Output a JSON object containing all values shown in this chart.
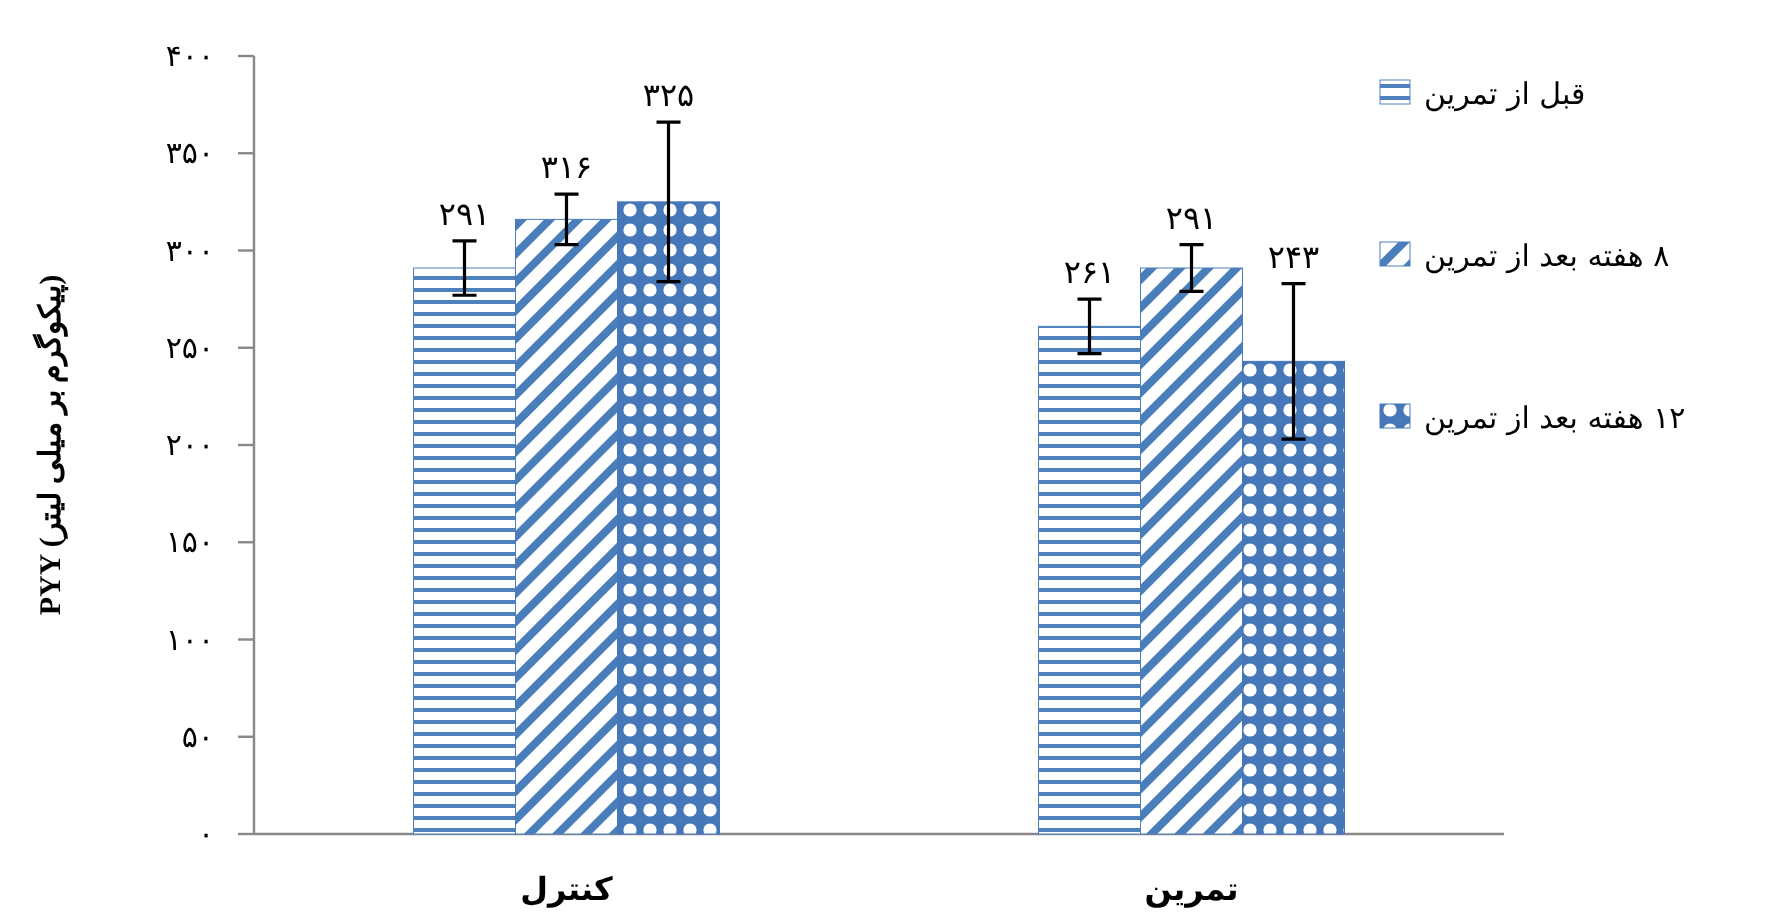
{
  "chart_data": {
    "type": "bar",
    "ylabel": "PYY (پیکوگرم بر میلی لیتر)",
    "categories": [
      "کنترل",
      "تمرین"
    ],
    "series": [
      {
        "name": "قبل از تمرین",
        "color": "#4f81bd",
        "values": [
          291,
          261
        ],
        "errors": [
          14,
          14
        ],
        "value_labels": [
          "۲۹۱",
          "۲۶۱"
        ]
      },
      {
        "name": "۸ هفته بعد از تمرین",
        "color": "#4a7ebb",
        "values": [
          316,
          291
        ],
        "errors": [
          13,
          12
        ],
        "value_labels": [
          "۳۱۶",
          "۲۹۱"
        ]
      },
      {
        "name": "۱۲ هفته بعد از تمرین",
        "color": "#4677b8",
        "values": [
          325,
          243
        ],
        "errors": [
          41,
          40
        ],
        "value_labels": [
          "۳۲۵",
          "۲۴۳"
        ]
      }
    ],
    "ylim": [
      0,
      400
    ],
    "yticks": [
      {
        "value": 0,
        "label": "۰"
      },
      {
        "value": 50,
        "label": "۵۰"
      },
      {
        "value": 100,
        "label": "۱۰۰"
      },
      {
        "value": 150,
        "label": "۱۵۰"
      },
      {
        "value": 200,
        "label": "۲۰۰"
      },
      {
        "value": 250,
        "label": "۲۵۰"
      },
      {
        "value": 300,
        "label": "۳۰۰"
      },
      {
        "value": 350,
        "label": "۳۵۰"
      },
      {
        "value": 400,
        "label": "۴۰۰"
      }
    ],
    "grid": false,
    "legend": "right"
  }
}
